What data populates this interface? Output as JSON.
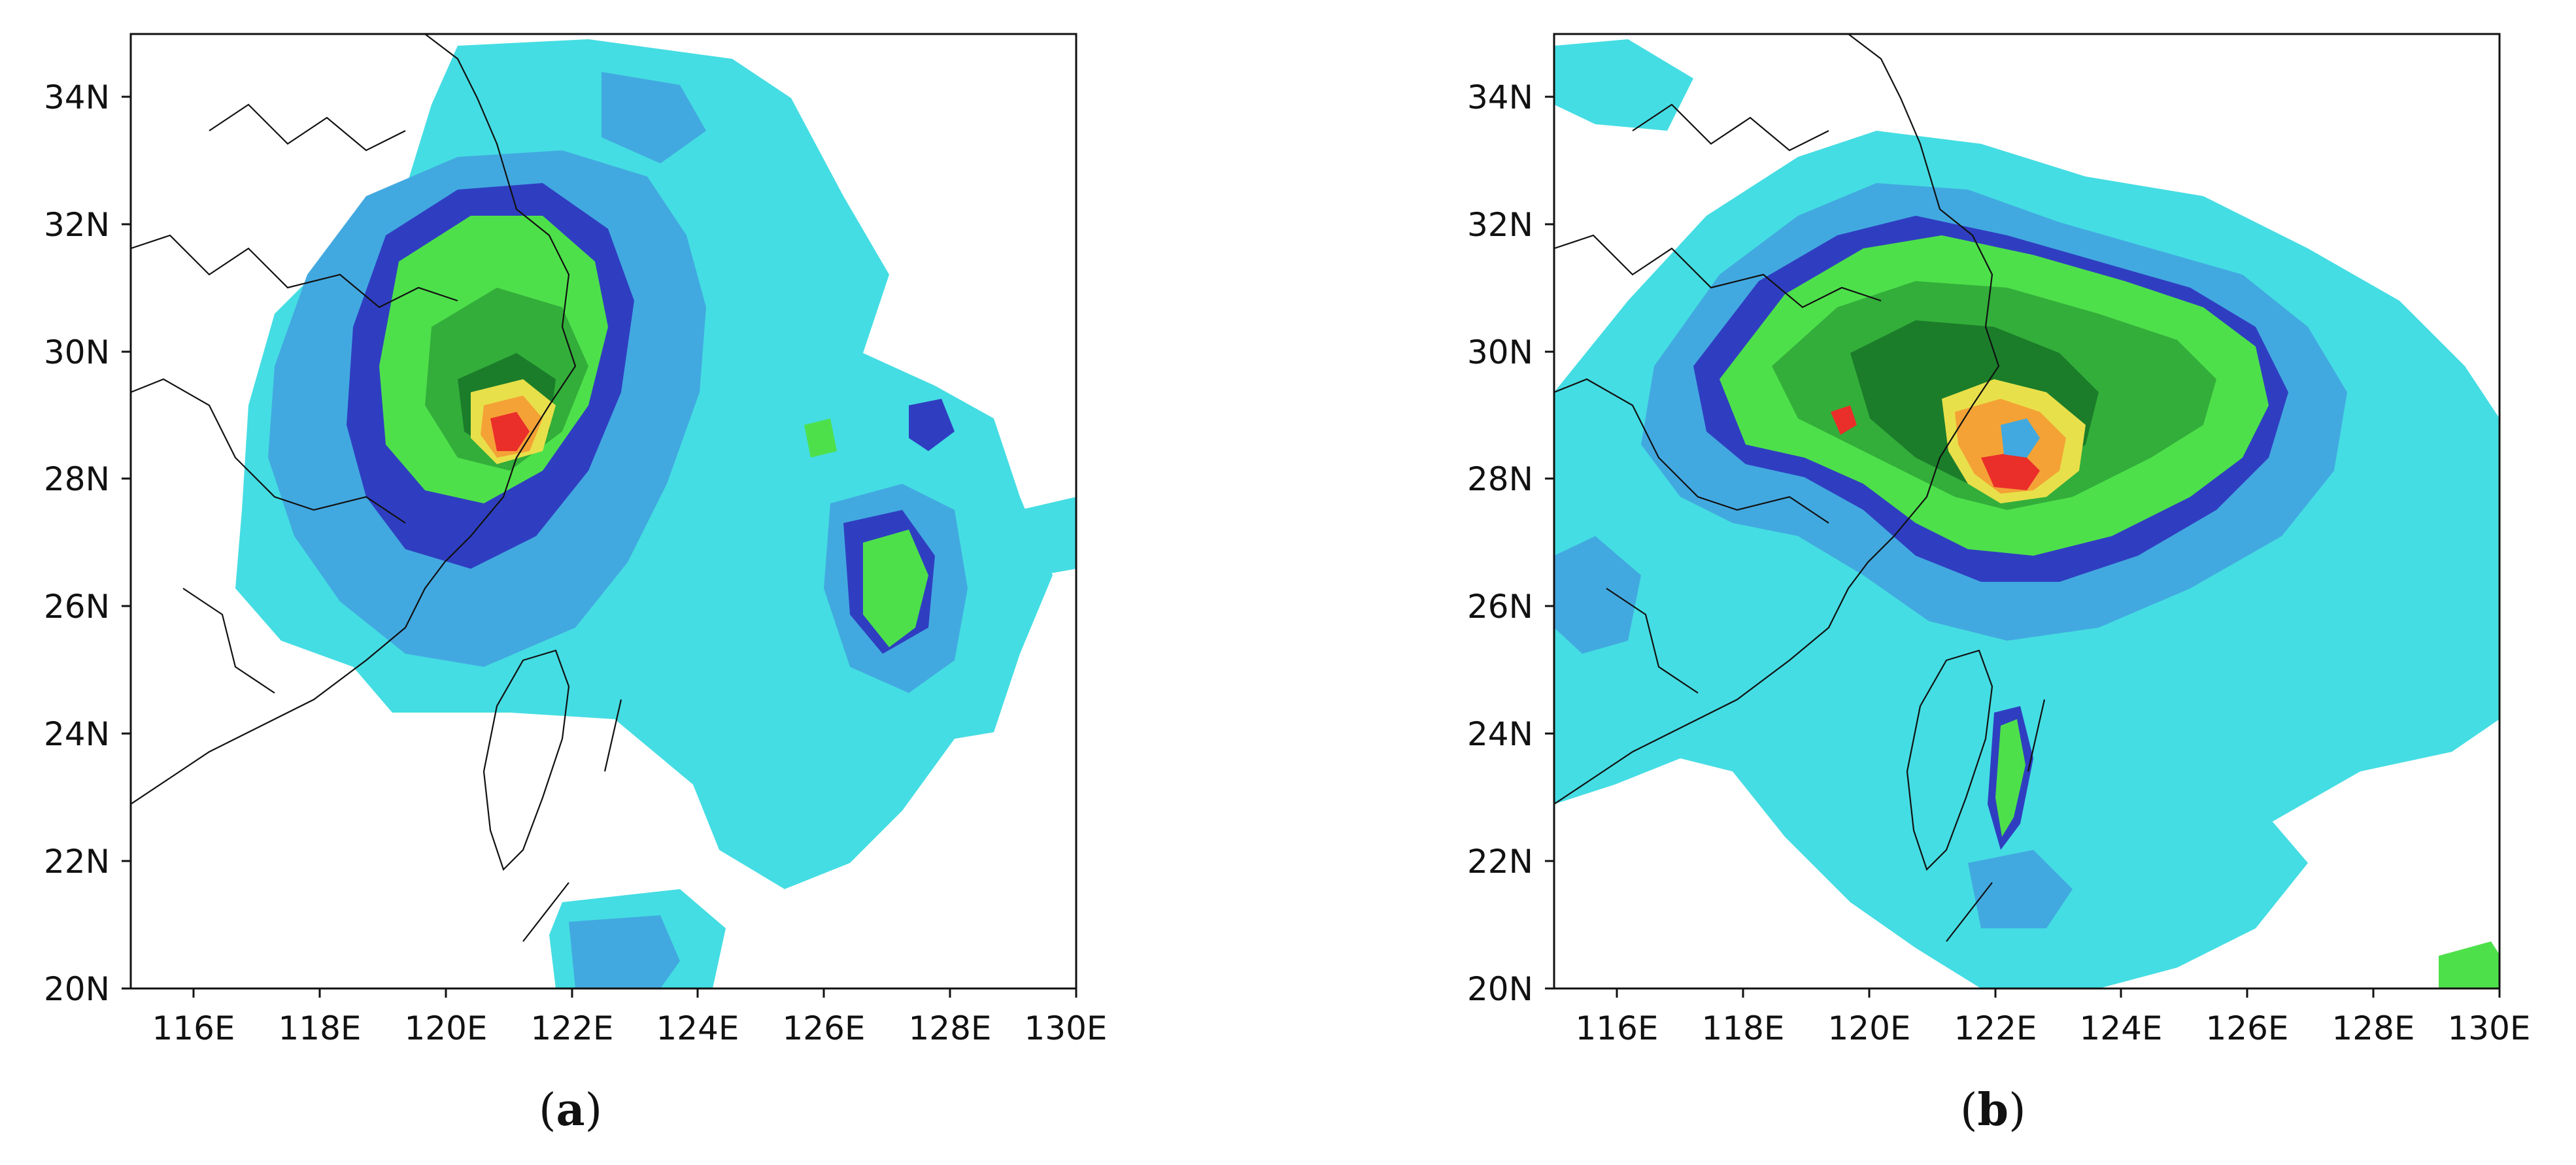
{
  "panels": [
    {
      "label_open": "(",
      "label_letter": "a",
      "label_close": ")"
    },
    {
      "label_open": "(",
      "label_letter": "b",
      "label_close": ")"
    }
  ],
  "axes": {
    "lat_labels": [
      "34N",
      "32N",
      "30N",
      "28N",
      "26N",
      "24N",
      "22N",
      "20N"
    ],
    "lon_labels": [
      "116E",
      "118E",
      "120E",
      "122E",
      "124E",
      "126E",
      "128E",
      "130E"
    ]
  },
  "map_extent": {
    "lon_min": 115,
    "lon_max": 130,
    "lat_min": 20,
    "lat_max": 35
  },
  "colors": {
    "light_cyan": "#44dde3",
    "sky_blue": "#42a9e0",
    "dark_blue": "#2f3ec1",
    "light_green": "#4ee04b",
    "green": "#33ae3a",
    "dark_green": "#1b7d2a",
    "yellow": "#e8e04a",
    "orange": "#f4a236",
    "red": "#ea2e2a",
    "coastline": "#111111"
  }
}
